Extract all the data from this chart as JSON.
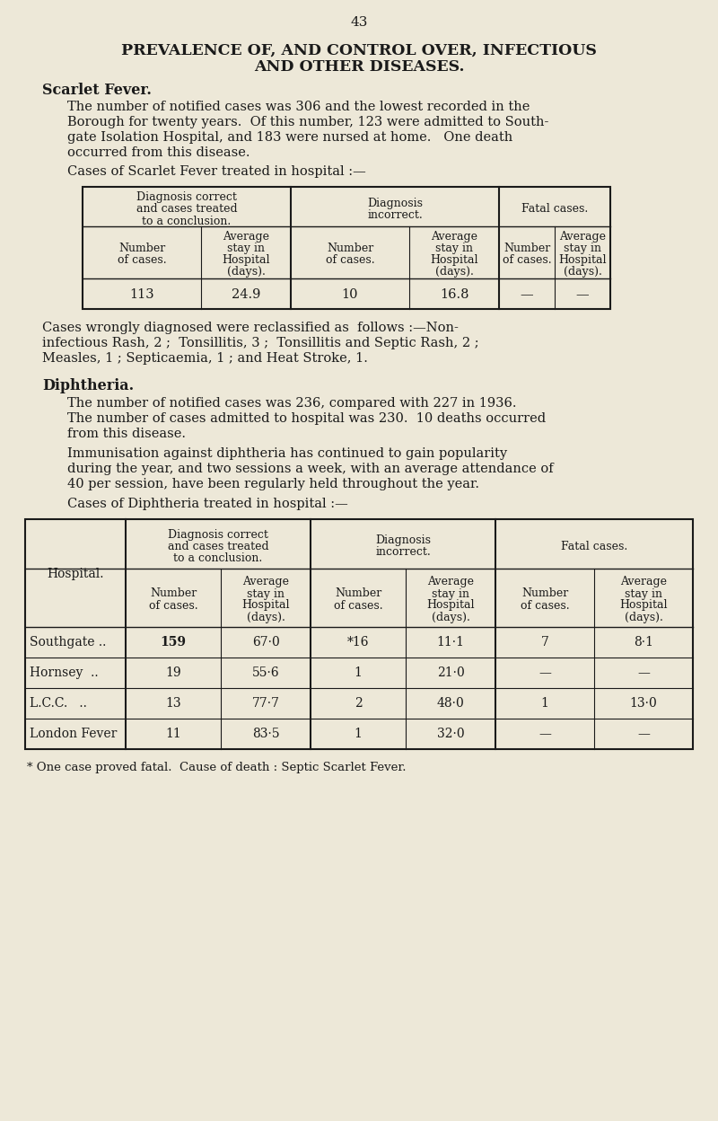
{
  "page_number": "43",
  "bg_color": "#ede8d8",
  "text_color": "#1a1a1a",
  "title_line1": "PREVALENCE OF, AND CONTROL OVER, INFECTIOUS",
  "title_line2": "AND OTHER DISEASES.",
  "section1_heading": "Scarlet Fever.",
  "section1_para1_lines": [
    "The number of notified cases was 306 and the lowest recorded in the",
    "Borough for twenty years.  Of this number, 123 were admitted to South-",
    "gate Isolation Hospital, and 183 were nursed at home.   One death",
    "occurred from this disease."
  ],
  "section1_table_intro": "Cases of Scarlet Fever treated in hospital :—",
  "scarlet_col_groups": [
    "Diagnosis correct\nand cases treated\nto a conclusion.",
    "Diagnosis\nincorrect.",
    "Fatal cases."
  ],
  "scarlet_sub_headers": [
    "Number\nof cases.",
    "Average\nstay in\nHospital\n(days).",
    "Number\nof cases.",
    "Average\nstay in\nHospital\n(days).",
    "Number\nof cases.",
    "Average\nstay in\nHospital\n(days)."
  ],
  "scarlet_data_row": [
    "113",
    "24.9",
    "10",
    "16.8",
    "—",
    "—"
  ],
  "section1_para2_lines": [
    "Cases wrongly diagnosed were reclassified as  follows :—Non-",
    "infectious Rash, 2 ;  Tonsillitis, 3 ;  Tonsillitis and Septic Rash, 2 ;",
    "Measles, 1 ; Septicaemia, 1 ; and Heat Stroke, 1."
  ],
  "section2_heading": "Diphtheria.",
  "section2_para1_lines": [
    "The number of notified cases was 236, compared with 227 in 1936.",
    "The number of cases admitted to hospital was 230.  10 deaths occurred",
    "from this disease."
  ],
  "section2_para2_lines": [
    "Immunisation against diphtheria has continued to gain popularity",
    "during the year, and two sessions a week, with an average attendance of",
    "40 per session, have been regularly held throughout the year."
  ],
  "section2_table_intro": "Cases of Diphtheria treated in hospital :—",
  "diph_col_groups": [
    "Diagnosis correct\nand cases treated\nto a conclusion.",
    "Diagnosis\nincorrect.",
    "Fatal cases."
  ],
  "diph_sub_headers": [
    "Number\nof cases.",
    "Average\nstay in\nHospital\n(days).",
    "Number\nof cases.",
    "Average\nstay in\nHospital\n(days).",
    "Number\nof cases.",
    "Average\nstay in\nHospital\n(days)."
  ],
  "diph_hospitals": [
    "Southgate ..",
    "Hornsey  ..",
    "L.C.C.   ..",
    "London Fever"
  ],
  "diph_data": [
    [
      "159",
      "67·0",
      "*16",
      "11·1",
      "7",
      "8·1"
    ],
    [
      "19",
      "55·6",
      "1",
      "21·0",
      "—",
      "—"
    ],
    [
      "13",
      "77·7",
      "2",
      "48·0",
      "1",
      "13·0"
    ],
    [
      "11",
      "83·5",
      "1",
      "32·0",
      "—",
      "—"
    ]
  ],
  "footnote": "* One case proved fatal.  Cause of death : Septic Scarlet Fever."
}
